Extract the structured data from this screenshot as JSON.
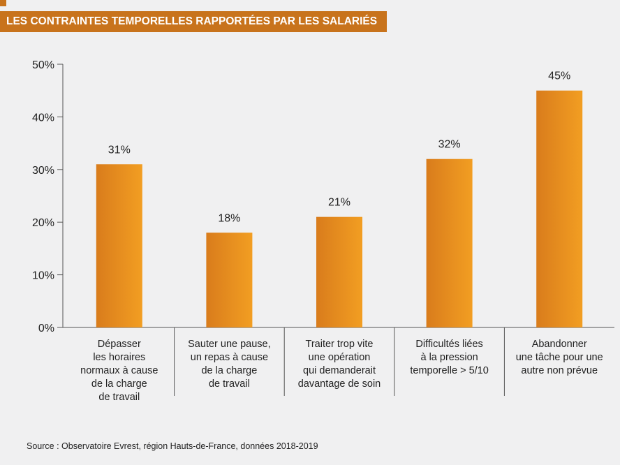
{
  "title": "LES CONTRAINTES TEMPORELLES RAPPORTÉES PAR LES SALARIÉS",
  "source": "Source : Observatoire Evrest, région Hauts-de-France, données 2018-2019",
  "colors": {
    "accent": "#c8731c",
    "bar_dark": "#d97c1c",
    "bar_light": "#f29e22",
    "background": "#f0f0f1",
    "axis": "#555555"
  },
  "chart_data": {
    "type": "bar",
    "categories": [
      [
        "Dépasser",
        "les horaires",
        "normaux à cause",
        "de la charge",
        "de travail"
      ],
      [
        "Sauter une pause,",
        "un repas à cause",
        "de la charge",
        "de travail"
      ],
      [
        "Traiter trop vite",
        "une opération",
        "qui demanderait",
        "davantage de soin"
      ],
      [
        "Difficultés liées",
        "à la pression",
        "temporelle > 5/10"
      ],
      [
        "Abandonner",
        "une tâche pour une",
        "autre non prévue"
      ]
    ],
    "values": [
      31,
      18,
      21,
      32,
      45
    ],
    "value_labels": [
      "31%",
      "18%",
      "21%",
      "32%",
      "45%"
    ],
    "yticks": [
      0,
      10,
      20,
      30,
      40,
      50
    ],
    "ytick_labels": [
      "0%",
      "10%",
      "20%",
      "30%",
      "40%",
      "50%"
    ],
    "ylim": [
      0,
      50
    ],
    "grid": false,
    "legend": "none"
  }
}
